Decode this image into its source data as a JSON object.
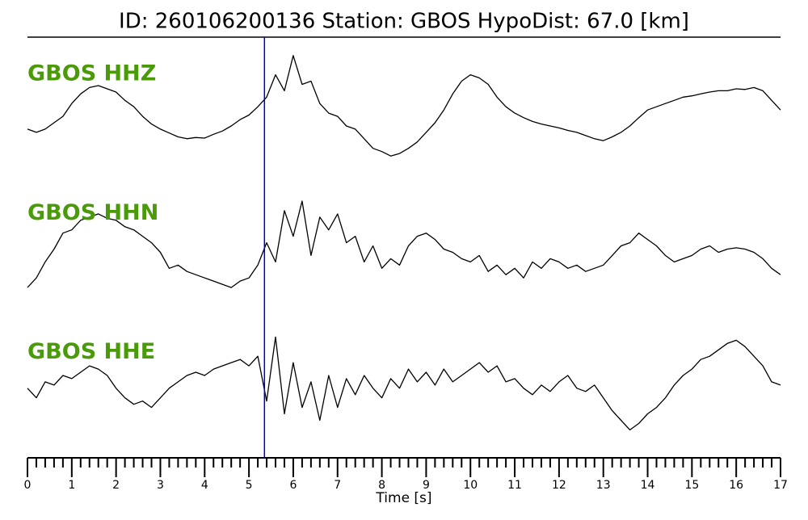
{
  "chart_data": {
    "type": "line",
    "title": "ID: 260106200136   Station: GBOS   HypoDist:    67.0 [km]",
    "x_label": "Time [s]",
    "xlim": [
      0,
      17
    ],
    "xticks": [
      0,
      1,
      2,
      3,
      4,
      5,
      6,
      7,
      8,
      9,
      10,
      11,
      12,
      13,
      14,
      15,
      16,
      17
    ],
    "minor_xticks": [
      0.2,
      0.4,
      0.6,
      0.8,
      1.2,
      1.4,
      1.6,
      1.8,
      2.2,
      2.4,
      2.6,
      2.8,
      3.2,
      3.4,
      3.6,
      3.8,
      4.2,
      4.4,
      4.6,
      4.8,
      5.2,
      5.4,
      5.6,
      5.8,
      6.2,
      6.4,
      6.6,
      6.8,
      7.2,
      7.4,
      7.6,
      7.8,
      8.2,
      8.4,
      8.6,
      8.8,
      9.2,
      9.4,
      9.6,
      9.8,
      10.2,
      10.4,
      10.6,
      10.8,
      11.2,
      11.4,
      11.6,
      11.8,
      12.2,
      12.4,
      12.6,
      12.8,
      13.2,
      13.4,
      13.6,
      13.8,
      14.2,
      14.4,
      14.6,
      14.8,
      15.2,
      15.4,
      15.6,
      15.8,
      16.2,
      16.4,
      16.6,
      16.8
    ],
    "ylim": [
      -1,
      1
    ],
    "label_color": "#4a9a0a",
    "pick": {
      "x": 5.35,
      "color": "#0000cc"
    },
    "x": [
      0,
      0.2,
      0.4,
      0.6,
      0.8,
      1,
      1.2,
      1.4,
      1.6,
      1.8,
      2,
      2.2,
      2.4,
      2.6,
      2.8,
      3,
      3.2,
      3.4,
      3.6,
      3.8,
      4,
      4.2,
      4.4,
      4.6,
      4.8,
      5,
      5.2,
      5.4,
      5.6,
      5.8,
      6,
      6.2,
      6.4,
      6.6,
      6.8,
      7,
      7.2,
      7.4,
      7.6,
      7.8,
      8,
      8.2,
      8.4,
      8.6,
      8.8,
      9,
      9.2,
      9.4,
      9.6,
      9.8,
      10,
      10.2,
      10.4,
      10.6,
      10.8,
      11,
      11.2,
      11.4,
      11.6,
      11.8,
      12,
      12.2,
      12.4,
      12.6,
      12.8,
      13,
      13.2,
      13.4,
      13.6,
      13.8,
      14,
      14.2,
      14.4,
      14.6,
      14.8,
      15,
      15.2,
      15.4,
      15.6,
      15.8,
      16,
      16.2,
      16.4,
      16.6,
      16.8,
      17
    ],
    "series": [
      {
        "name": "GBOS HHZ",
        "color": "#000000",
        "values": [
          -0.3,
          -0.35,
          -0.3,
          -0.2,
          -0.1,
          0.1,
          0.25,
          0.35,
          0.38,
          0.33,
          0.28,
          0.15,
          0.05,
          -0.1,
          -0.22,
          -0.3,
          -0.36,
          -0.42,
          -0.45,
          -0.43,
          -0.44,
          -0.38,
          -0.33,
          -0.25,
          -0.15,
          -0.08,
          0.05,
          0.2,
          0.55,
          0.3,
          0.85,
          0.4,
          0.45,
          0.1,
          -0.05,
          -0.1,
          -0.25,
          -0.3,
          -0.45,
          -0.6,
          -0.65,
          -0.72,
          -0.68,
          -0.6,
          -0.5,
          -0.35,
          -0.2,
          0.0,
          0.25,
          0.45,
          0.55,
          0.5,
          0.4,
          0.2,
          0.05,
          -0.05,
          -0.12,
          -0.18,
          -0.22,
          -0.25,
          -0.28,
          -0.32,
          -0.35,
          -0.4,
          -0.45,
          -0.48,
          -0.42,
          -0.35,
          -0.25,
          -0.12,
          0.0,
          0.05,
          0.1,
          0.15,
          0.2,
          0.22,
          0.25,
          0.28,
          0.3,
          0.3,
          0.33,
          0.32,
          0.35,
          0.3,
          0.15,
          0.0
        ]
      },
      {
        "name": "GBOS HHN",
        "color": "#000000",
        "values": [
          -0.6,
          -0.45,
          -0.2,
          0.0,
          0.25,
          0.3,
          0.45,
          0.5,
          0.55,
          0.48,
          0.45,
          0.35,
          0.3,
          0.2,
          0.1,
          -0.05,
          -0.3,
          -0.25,
          -0.35,
          -0.4,
          -0.45,
          -0.5,
          -0.55,
          -0.6,
          -0.5,
          -0.45,
          -0.25,
          0.1,
          -0.2,
          0.6,
          0.2,
          0.75,
          -0.1,
          0.5,
          0.3,
          0.55,
          0.1,
          0.2,
          -0.2,
          0.05,
          -0.3,
          -0.15,
          -0.25,
          0.05,
          0.2,
          0.25,
          0.15,
          0.0,
          -0.05,
          -0.15,
          -0.2,
          -0.1,
          -0.35,
          -0.25,
          -0.4,
          -0.3,
          -0.45,
          -0.2,
          -0.3,
          -0.15,
          -0.2,
          -0.3,
          -0.25,
          -0.35,
          -0.3,
          -0.25,
          -0.1,
          0.05,
          0.1,
          0.25,
          0.15,
          0.05,
          -0.1,
          -0.2,
          -0.15,
          -0.1,
          0.0,
          0.05,
          -0.05,
          0.0,
          0.02,
          0.0,
          -0.05,
          -0.15,
          -0.3,
          -0.4
        ]
      },
      {
        "name": "GBOS HHE",
        "color": "#000000",
        "values": [
          0.0,
          -0.15,
          0.1,
          0.05,
          0.2,
          0.15,
          0.25,
          0.35,
          0.3,
          0.2,
          0.0,
          -0.15,
          -0.25,
          -0.2,
          -0.3,
          -0.15,
          0.0,
          0.1,
          0.2,
          0.25,
          0.2,
          0.3,
          0.35,
          0.4,
          0.45,
          0.35,
          0.5,
          -0.2,
          0.8,
          -0.4,
          0.4,
          -0.3,
          0.1,
          -0.5,
          0.2,
          -0.3,
          0.15,
          -0.1,
          0.2,
          0.0,
          -0.15,
          0.15,
          0.0,
          0.3,
          0.1,
          0.25,
          0.05,
          0.3,
          0.1,
          0.2,
          0.3,
          0.4,
          0.25,
          0.35,
          0.1,
          0.15,
          0.0,
          -0.1,
          0.05,
          -0.05,
          0.1,
          0.2,
          0.0,
          -0.05,
          0.05,
          -0.15,
          -0.35,
          -0.5,
          -0.65,
          -0.55,
          -0.4,
          -0.3,
          -0.15,
          0.05,
          0.2,
          0.3,
          0.45,
          0.5,
          0.6,
          0.7,
          0.75,
          0.65,
          0.5,
          0.35,
          0.1,
          0.05
        ]
      }
    ]
  }
}
